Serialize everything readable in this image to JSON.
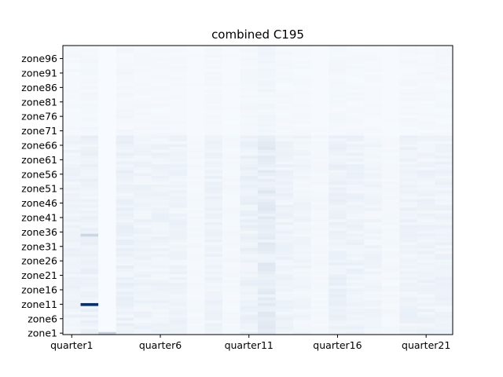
{
  "chart_data": {
    "type": "heatmap",
    "title": "combined C195",
    "xlabel": "",
    "ylabel": "",
    "x_categories": [
      "quarter1",
      "quarter2",
      "quarter3",
      "quarter4",
      "quarter5",
      "quarter6",
      "quarter7",
      "quarter8",
      "quarter9",
      "quarter10",
      "quarter11",
      "quarter12",
      "quarter13",
      "quarter14",
      "quarter15",
      "quarter16",
      "quarter17",
      "quarter18",
      "quarter19",
      "quarter20",
      "quarter21",
      "quarter22"
    ],
    "x_tick_labels": [
      "quarter1",
      "quarter6",
      "quarter11",
      "quarter16",
      "quarter21"
    ],
    "y_tick_labels": [
      "zone1",
      "zone6",
      "zone11",
      "zone16",
      "zone21",
      "zone26",
      "zone31",
      "zone36",
      "zone41",
      "zone46",
      "zone51",
      "zone56",
      "zone61",
      "zone66",
      "zone71",
      "zone76",
      "zone81",
      "zone86",
      "zone91",
      "zone96"
    ],
    "y_count": 100,
    "colormap": "Blues",
    "grid": false,
    "value_scale": [
      0,
      1
    ],
    "column_base": [
      0.05,
      0.06,
      0.0,
      0.06,
      0.05,
      0.05,
      0.05,
      0.02,
      0.05,
      0.02,
      0.06,
      0.09,
      0.05,
      0.04,
      0.02,
      0.06,
      0.05,
      0.04,
      0.02,
      0.05,
      0.05,
      0.05
    ],
    "hotspots": [
      {
        "x": "quarter2",
        "y": "zone11",
        "value": 1.0
      },
      {
        "x": "quarter2",
        "y": "zone35",
        "value": 0.18
      },
      {
        "x": "quarter3",
        "y": "zone1",
        "value": 0.2
      }
    ]
  },
  "colors": {
    "low": "#f7fbff",
    "high": "#08306b"
  }
}
